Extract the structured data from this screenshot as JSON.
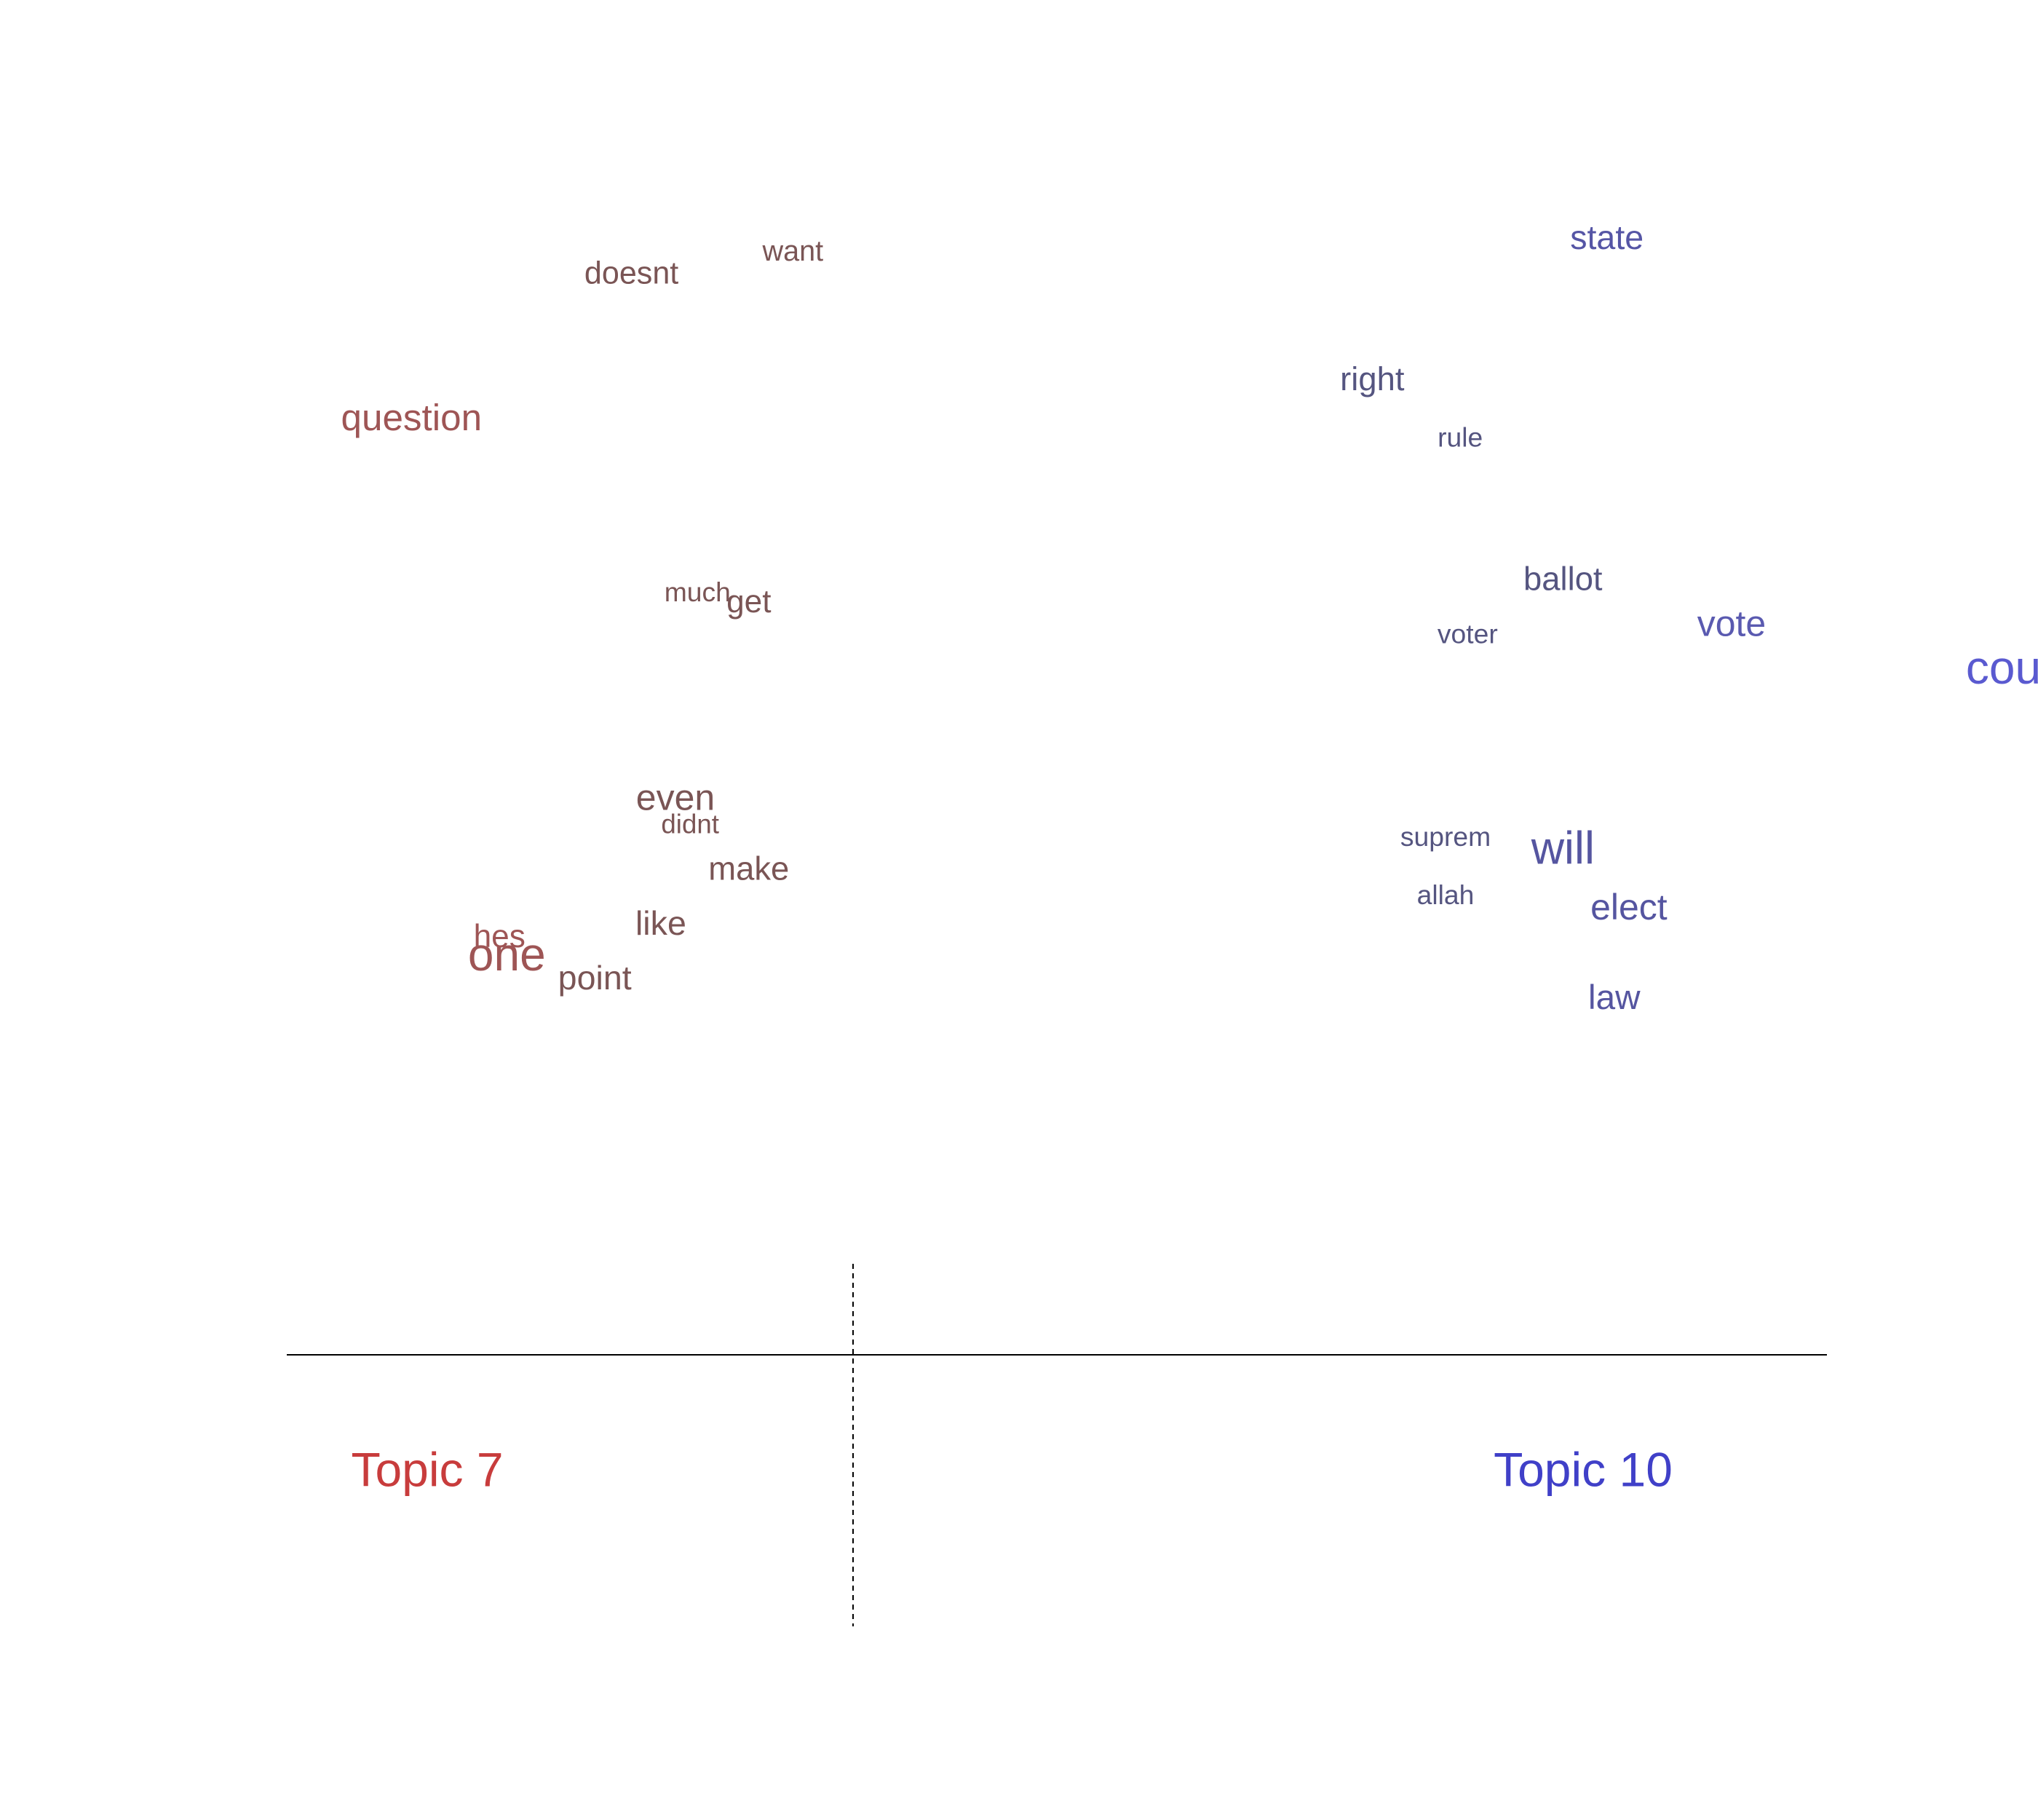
{
  "chart_data": {
    "type": "scatter",
    "title": "",
    "xlabel": "",
    "ylabel": "",
    "xlim": [
      -1.05,
      1.05
    ],
    "ylim": [
      -0.82,
      1.0
    ],
    "grid": false,
    "legend": "none",
    "topics": [
      {
        "label": "Topic 7",
        "color": "#C83C3C"
      },
      {
        "label": "Topic 10",
        "color": "#4040C8"
      }
    ],
    "words": [
      {
        "word": "want",
        "x": -0.36,
        "y": 0.89,
        "weight": 0.2,
        "color": "#7A5555"
      },
      {
        "word": "doesnt",
        "x": -0.58,
        "y": 0.855,
        "weight": 0.26,
        "color": "#7A5555"
      },
      {
        "word": "question",
        "x": -0.88,
        "y": 0.63,
        "weight": 0.4,
        "color": "#9E5555"
      },
      {
        "word": "much",
        "x": -0.49,
        "y": 0.36,
        "weight": 0.16,
        "color": "#7A5555"
      },
      {
        "word": "get",
        "x": -0.42,
        "y": 0.345,
        "weight": 0.28,
        "color": "#7A5555"
      },
      {
        "word": "even",
        "x": -0.52,
        "y": 0.04,
        "weight": 0.38,
        "color": "#7A5555"
      },
      {
        "word": "didnt",
        "x": -0.5,
        "y": 0.0,
        "weight": 0.15,
        "color": "#7A5555"
      },
      {
        "word": "make",
        "x": -0.42,
        "y": -0.07,
        "weight": 0.3,
        "color": "#7A5555"
      },
      {
        "word": "like",
        "x": -0.54,
        "y": -0.155,
        "weight": 0.32,
        "color": "#7A5555"
      },
      {
        "word": "hes",
        "x": -0.76,
        "y": -0.175,
        "weight": 0.28,
        "color": "#9E5555"
      },
      {
        "word": "one",
        "x": -0.75,
        "y": -0.205,
        "weight": 0.62,
        "color": "#9E5555"
      },
      {
        "word": "point",
        "x": -0.63,
        "y": -0.24,
        "weight": 0.32,
        "color": "#7A5555"
      },
      {
        "word": "state",
        "x": 0.75,
        "y": 0.91,
        "weight": 0.32,
        "color": "#5555A5"
      },
      {
        "word": "right",
        "x": 0.43,
        "y": 0.69,
        "weight": 0.3,
        "color": "#555580"
      },
      {
        "word": "rule",
        "x": 0.55,
        "y": 0.6,
        "weight": 0.16,
        "color": "#555580"
      },
      {
        "word": "ballot",
        "x": 0.69,
        "y": 0.38,
        "weight": 0.3,
        "color": "#555580"
      },
      {
        "word": "vote",
        "x": 0.92,
        "y": 0.31,
        "weight": 0.38,
        "color": "#5A5AB0"
      },
      {
        "word": "voter",
        "x": 0.56,
        "y": 0.295,
        "weight": 0.16,
        "color": "#555580"
      },
      {
        "word": "court",
        "x": 1.31,
        "y": 0.24,
        "weight": 0.62,
        "color": "#5A5AD0"
      },
      {
        "word": "suprem",
        "x": 0.53,
        "y": -0.02,
        "weight": 0.16,
        "color": "#555580"
      },
      {
        "word": "will",
        "x": 0.69,
        "y": -0.04,
        "weight": 0.6,
        "color": "#5555A0"
      },
      {
        "word": "allah",
        "x": 0.53,
        "y": -0.11,
        "weight": 0.16,
        "color": "#555580"
      },
      {
        "word": "elect",
        "x": 0.78,
        "y": -0.13,
        "weight": 0.38,
        "color": "#5555A0"
      },
      {
        "word": "law",
        "x": 0.76,
        "y": -0.27,
        "weight": 0.34,
        "color": "#5555A0"
      }
    ]
  }
}
